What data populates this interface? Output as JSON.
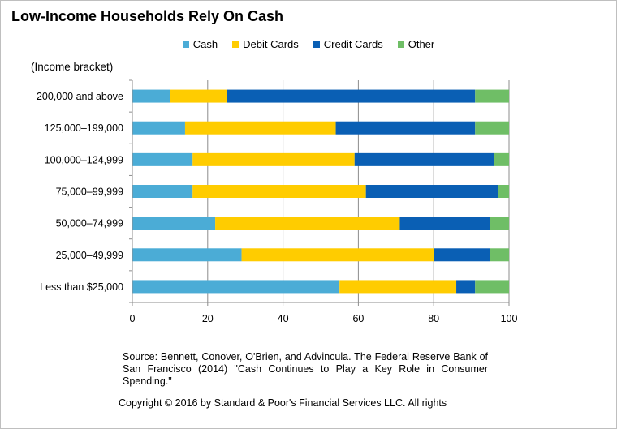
{
  "title": "Low-Income Households Rely On Cash",
  "y_caption": "(Income bracket)",
  "source": "Source: Bennett, Conover, O'Brien, and Advincula. The Federal  Reserve Bank of San Francisco (2014) \"Cash Continues to Play a  Key Role in Consumer Spending.\"",
  "copyright": "Copyright © 2016 by Standard & Poor's Financial Services LLC. All rights",
  "chart_data": {
    "type": "bar",
    "orientation": "horizontal",
    "stacked": true,
    "categories": [
      "200,000 and above",
      "125,000–199,000",
      "100,000–124,999",
      "75,000–99,999",
      "50,000–74,999",
      "25,000–49,999",
      "Less than $25,000"
    ],
    "series": [
      {
        "name": "Cash",
        "color": "#4bacd6",
        "values": [
          10,
          14,
          16,
          16,
          22,
          29,
          55
        ]
      },
      {
        "name": "Debit Cards",
        "color": "#ffcc00",
        "values": [
          15,
          40,
          43,
          46,
          49,
          51,
          31
        ]
      },
      {
        "name": "Credit Cards",
        "color": "#0a5fb4",
        "values": [
          66,
          37,
          37,
          35,
          24,
          15,
          5
        ]
      },
      {
        "name": "Other",
        "color": "#6fbe66",
        "values": [
          9,
          9,
          4,
          3,
          5,
          5,
          9
        ]
      }
    ],
    "xlim": [
      0,
      100
    ],
    "xticks": [
      0,
      20,
      40,
      60,
      80,
      100
    ],
    "grid": true,
    "legend_position": "top"
  }
}
